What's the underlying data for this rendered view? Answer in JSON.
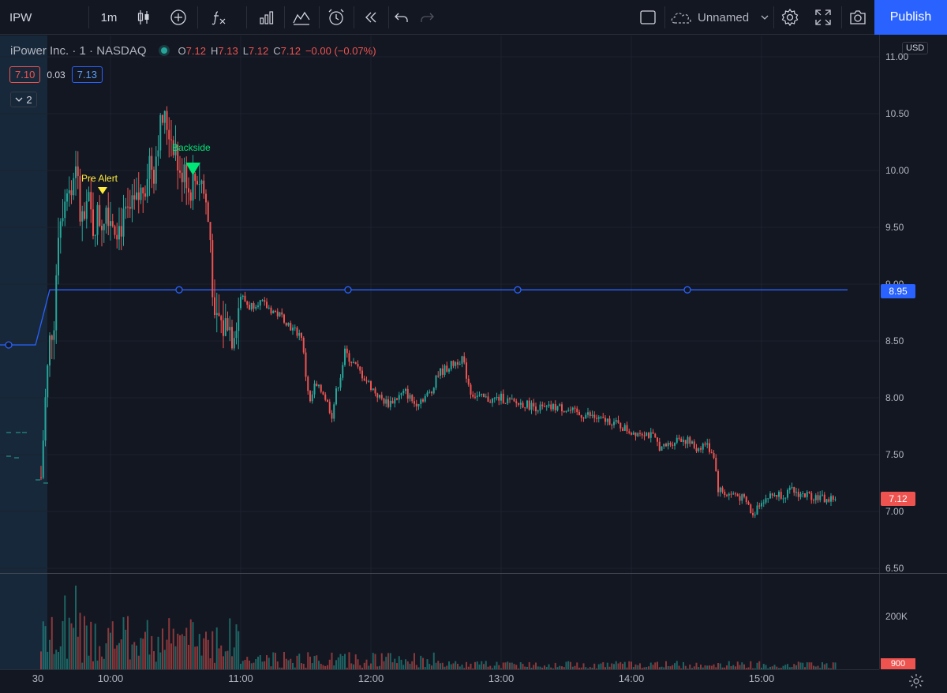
{
  "toolbar": {
    "symbol": "IPW",
    "interval": "1m",
    "layout_name": "Unnamed",
    "publish_label": "Publish",
    "icons": [
      "candles-icon",
      "add-compare-icon",
      "indicators-icon",
      "financials-icon",
      "templates-icon",
      "alert-icon",
      "replay-icon",
      "undo-icon",
      "redo-icon",
      "layout-icon",
      "cloud-icon",
      "settings-icon",
      "fullscreen-icon",
      "snapshot-icon"
    ]
  },
  "legend": {
    "title": "iPower Inc. · 1 · NASDAQ",
    "open_label": "O",
    "open": "7.12",
    "high_label": "H",
    "high": "7.13",
    "low_label": "L",
    "low": "7.12",
    "close_label": "C",
    "close": "7.12",
    "change": "−0.00 (−0.07%)",
    "bid": "7.10",
    "spread": "0.03",
    "ask": "7.13",
    "collapse_count": "2"
  },
  "axis": {
    "currency": "USD",
    "price_ticks": [
      "11.00",
      "10.50",
      "10.00",
      "9.50",
      "9.00",
      "8.50",
      "8.00",
      "7.50",
      "7.00",
      "6.50"
    ],
    "time_ticks": [
      "30",
      "10:00",
      "11:00",
      "12:00",
      "13:00",
      "14:00",
      "15:00"
    ],
    "volume_tick": "200K",
    "line_label": "8.95",
    "last_price_label": "7.12",
    "volume_label": "900"
  },
  "annotations": {
    "pre_alert": "Pre Alert",
    "backside": "Backside"
  },
  "colors": {
    "up": "#26a69a",
    "down": "#ef5350",
    "line": "#2962ff",
    "pre_alert": "#ffeb3b",
    "backside": "#00e676",
    "background": "#131722"
  },
  "chart_data": {
    "type": "candlestick",
    "price_range": [
      6.4,
      11.1
    ],
    "horizontal_line": 8.95,
    "path_points": [
      [
        "09:27",
        7.4
      ],
      [
        "09:28",
        7.3
      ],
      [
        "09:30",
        7.98
      ],
      [
        "09:32",
        8.5
      ],
      [
        "09:34",
        8.7
      ],
      [
        "09:36",
        9.5
      ],
      [
        "09:38",
        9.7
      ],
      [
        "09:40",
        9.9
      ],
      [
        "09:42",
        9.8
      ],
      [
        "09:44",
        10.1
      ],
      [
        "09:46",
        9.6
      ],
      [
        "09:48",
        9.55
      ],
      [
        "09:50",
        9.7
      ],
      [
        "09:52",
        9.5
      ],
      [
        "09:54",
        9.6
      ],
      [
        "09:56",
        9.55
      ],
      [
        "09:58",
        9.7
      ],
      [
        "10:00",
        9.6
      ],
      [
        "10:04",
        9.5
      ],
      [
        "10:08",
        9.6
      ],
      [
        "10:12",
        9.7
      ],
      [
        "10:16",
        9.9
      ],
      [
        "10:18",
        10.1
      ],
      [
        "10:20",
        10.0
      ],
      [
        "10:22",
        10.3
      ],
      [
        "10:24",
        10.45
      ],
      [
        "10:26",
        10.4
      ],
      [
        "10:28",
        10.3
      ],
      [
        "10:30",
        10.2
      ],
      [
        "10:32",
        9.9
      ],
      [
        "10:34",
        10.1
      ],
      [
        "10:36",
        9.8
      ],
      [
        "10:38",
        9.9
      ],
      [
        "10:40",
        9.95
      ],
      [
        "10:42",
        9.9
      ],
      [
        "10:44",
        9.7
      ],
      [
        "10:46",
        9.4
      ],
      [
        "10:48",
        8.6
      ],
      [
        "10:50",
        8.7
      ],
      [
        "10:52",
        8.6
      ],
      [
        "10:54",
        8.7
      ],
      [
        "10:56",
        8.55
      ],
      [
        "10:58",
        8.7
      ],
      [
        "11:00",
        8.9
      ],
      [
        "11:04",
        8.8
      ],
      [
        "11:08",
        8.85
      ],
      [
        "11:12",
        8.8
      ],
      [
        "11:16",
        8.75
      ],
      [
        "11:20",
        8.7
      ],
      [
        "11:24",
        8.6
      ],
      [
        "11:28",
        8.55
      ],
      [
        "11:30",
        8.2
      ],
      [
        "11:32",
        7.95
      ],
      [
        "11:34",
        8.1
      ],
      [
        "11:38",
        8.05
      ],
      [
        "11:42",
        7.85
      ],
      [
        "11:44",
        8.05
      ],
      [
        "11:46",
        8.2
      ],
      [
        "11:48",
        8.4
      ],
      [
        "11:52",
        8.3
      ],
      [
        "11:56",
        8.2
      ],
      [
        "12:00",
        8.1
      ],
      [
        "12:04",
        8.0
      ],
      [
        "12:08",
        7.95
      ],
      [
        "12:12",
        8.0
      ],
      [
        "12:16",
        8.05
      ],
      [
        "12:20",
        7.95
      ],
      [
        "12:24",
        8.0
      ],
      [
        "12:28",
        8.05
      ],
      [
        "12:30",
        8.2
      ],
      [
        "12:34",
        8.25
      ],
      [
        "12:38",
        8.3
      ],
      [
        "12:42",
        8.35
      ],
      [
        "12:44",
        8.2
      ],
      [
        "12:46",
        8.05
      ],
      [
        "12:50",
        8.0
      ],
      [
        "12:56",
        7.98
      ],
      [
        "13:00",
        8.0
      ],
      [
        "13:06",
        7.95
      ],
      [
        "13:10",
        7.95
      ],
      [
        "13:16",
        7.92
      ],
      [
        "13:20",
        7.9
      ],
      [
        "13:26",
        7.92
      ],
      [
        "13:30",
        7.9
      ],
      [
        "13:36",
        7.85
      ],
      [
        "13:40",
        7.85
      ],
      [
        "13:46",
        7.8
      ],
      [
        "13:50",
        7.8
      ],
      [
        "14:00",
        7.7
      ],
      [
        "14:06",
        7.7
      ],
      [
        "14:10",
        7.65
      ],
      [
        "14:14",
        7.55
      ],
      [
        "14:18",
        7.6
      ],
      [
        "14:22",
        7.65
      ],
      [
        "14:26",
        7.62
      ],
      [
        "14:30",
        7.55
      ],
      [
        "14:34",
        7.6
      ],
      [
        "14:38",
        7.5
      ],
      [
        "14:40",
        7.2
      ],
      [
        "14:44",
        7.15
      ],
      [
        "14:48",
        7.15
      ],
      [
        "14:52",
        7.1
      ],
      [
        "14:54",
        7.05
      ],
      [
        "14:56",
        6.95
      ],
      [
        "14:58",
        7.05
      ],
      [
        "15:00",
        7.1
      ],
      [
        "15:06",
        7.15
      ],
      [
        "15:10",
        7.15
      ],
      [
        "15:14",
        7.18
      ],
      [
        "15:18",
        7.15
      ],
      [
        "15:22",
        7.14
      ],
      [
        "15:26",
        7.13
      ],
      [
        "15:30",
        7.1
      ],
      [
        "15:34",
        7.12
      ]
    ]
  }
}
